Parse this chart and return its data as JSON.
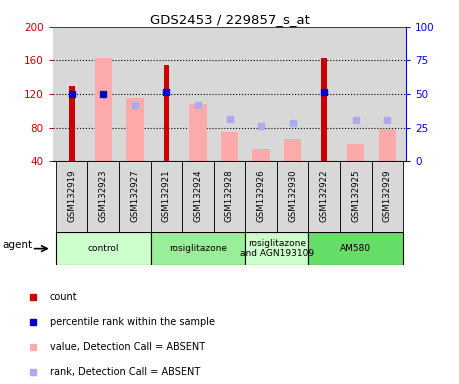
{
  "title": "GDS2453 / 229857_s_at",
  "samples": [
    "GSM132919",
    "GSM132923",
    "GSM132927",
    "GSM132921",
    "GSM132924",
    "GSM132928",
    "GSM132926",
    "GSM132930",
    "GSM132922",
    "GSM132925",
    "GSM132929"
  ],
  "red_bars": [
    130,
    null,
    null,
    155,
    null,
    null,
    null,
    null,
    163,
    null,
    null
  ],
  "pink_bars": [
    null,
    163,
    115,
    null,
    108,
    75,
    55,
    67,
    null,
    60,
    78
  ],
  "blue_squares_y": [
    120,
    120,
    null,
    122,
    null,
    null,
    null,
    null,
    123,
    null,
    null
  ],
  "lavender_squares_y": [
    null,
    null,
    107,
    null,
    107,
    90,
    82,
    85,
    null,
    89,
    89
  ],
  "ylim_left": [
    40,
    200
  ],
  "ylim_right": [
    0,
    100
  ],
  "yticks_left": [
    40,
    80,
    120,
    160,
    200
  ],
  "yticks_right": [
    0,
    25,
    50,
    75,
    100
  ],
  "groups": [
    {
      "label": "control",
      "start": 0,
      "end": 2,
      "color": "#ccffcc"
    },
    {
      "label": "rosiglitazone",
      "start": 3,
      "end": 5,
      "color": "#99ee99"
    },
    {
      "label": "rosiglitazone\nand AGN193109",
      "start": 6,
      "end": 7,
      "color": "#ccffcc"
    },
    {
      "label": "AM580",
      "start": 8,
      "end": 10,
      "color": "#66dd66"
    }
  ],
  "red_color": "#cc0000",
  "pink_color": "#ffaaaa",
  "blue_color": "#0000cc",
  "lavender_color": "#aaaaee",
  "bg_color": "#d8d8d8",
  "legend_items": [
    {
      "color": "#cc0000",
      "label": "count"
    },
    {
      "color": "#0000cc",
      "label": "percentile rank within the sample"
    },
    {
      "color": "#ffaaaa",
      "label": "value, Detection Call = ABSENT"
    },
    {
      "color": "#aaaaee",
      "label": "rank, Detection Call = ABSENT"
    }
  ],
  "agent_label": "agent",
  "pink_bar_width": 0.55,
  "red_bar_width": 0.18
}
